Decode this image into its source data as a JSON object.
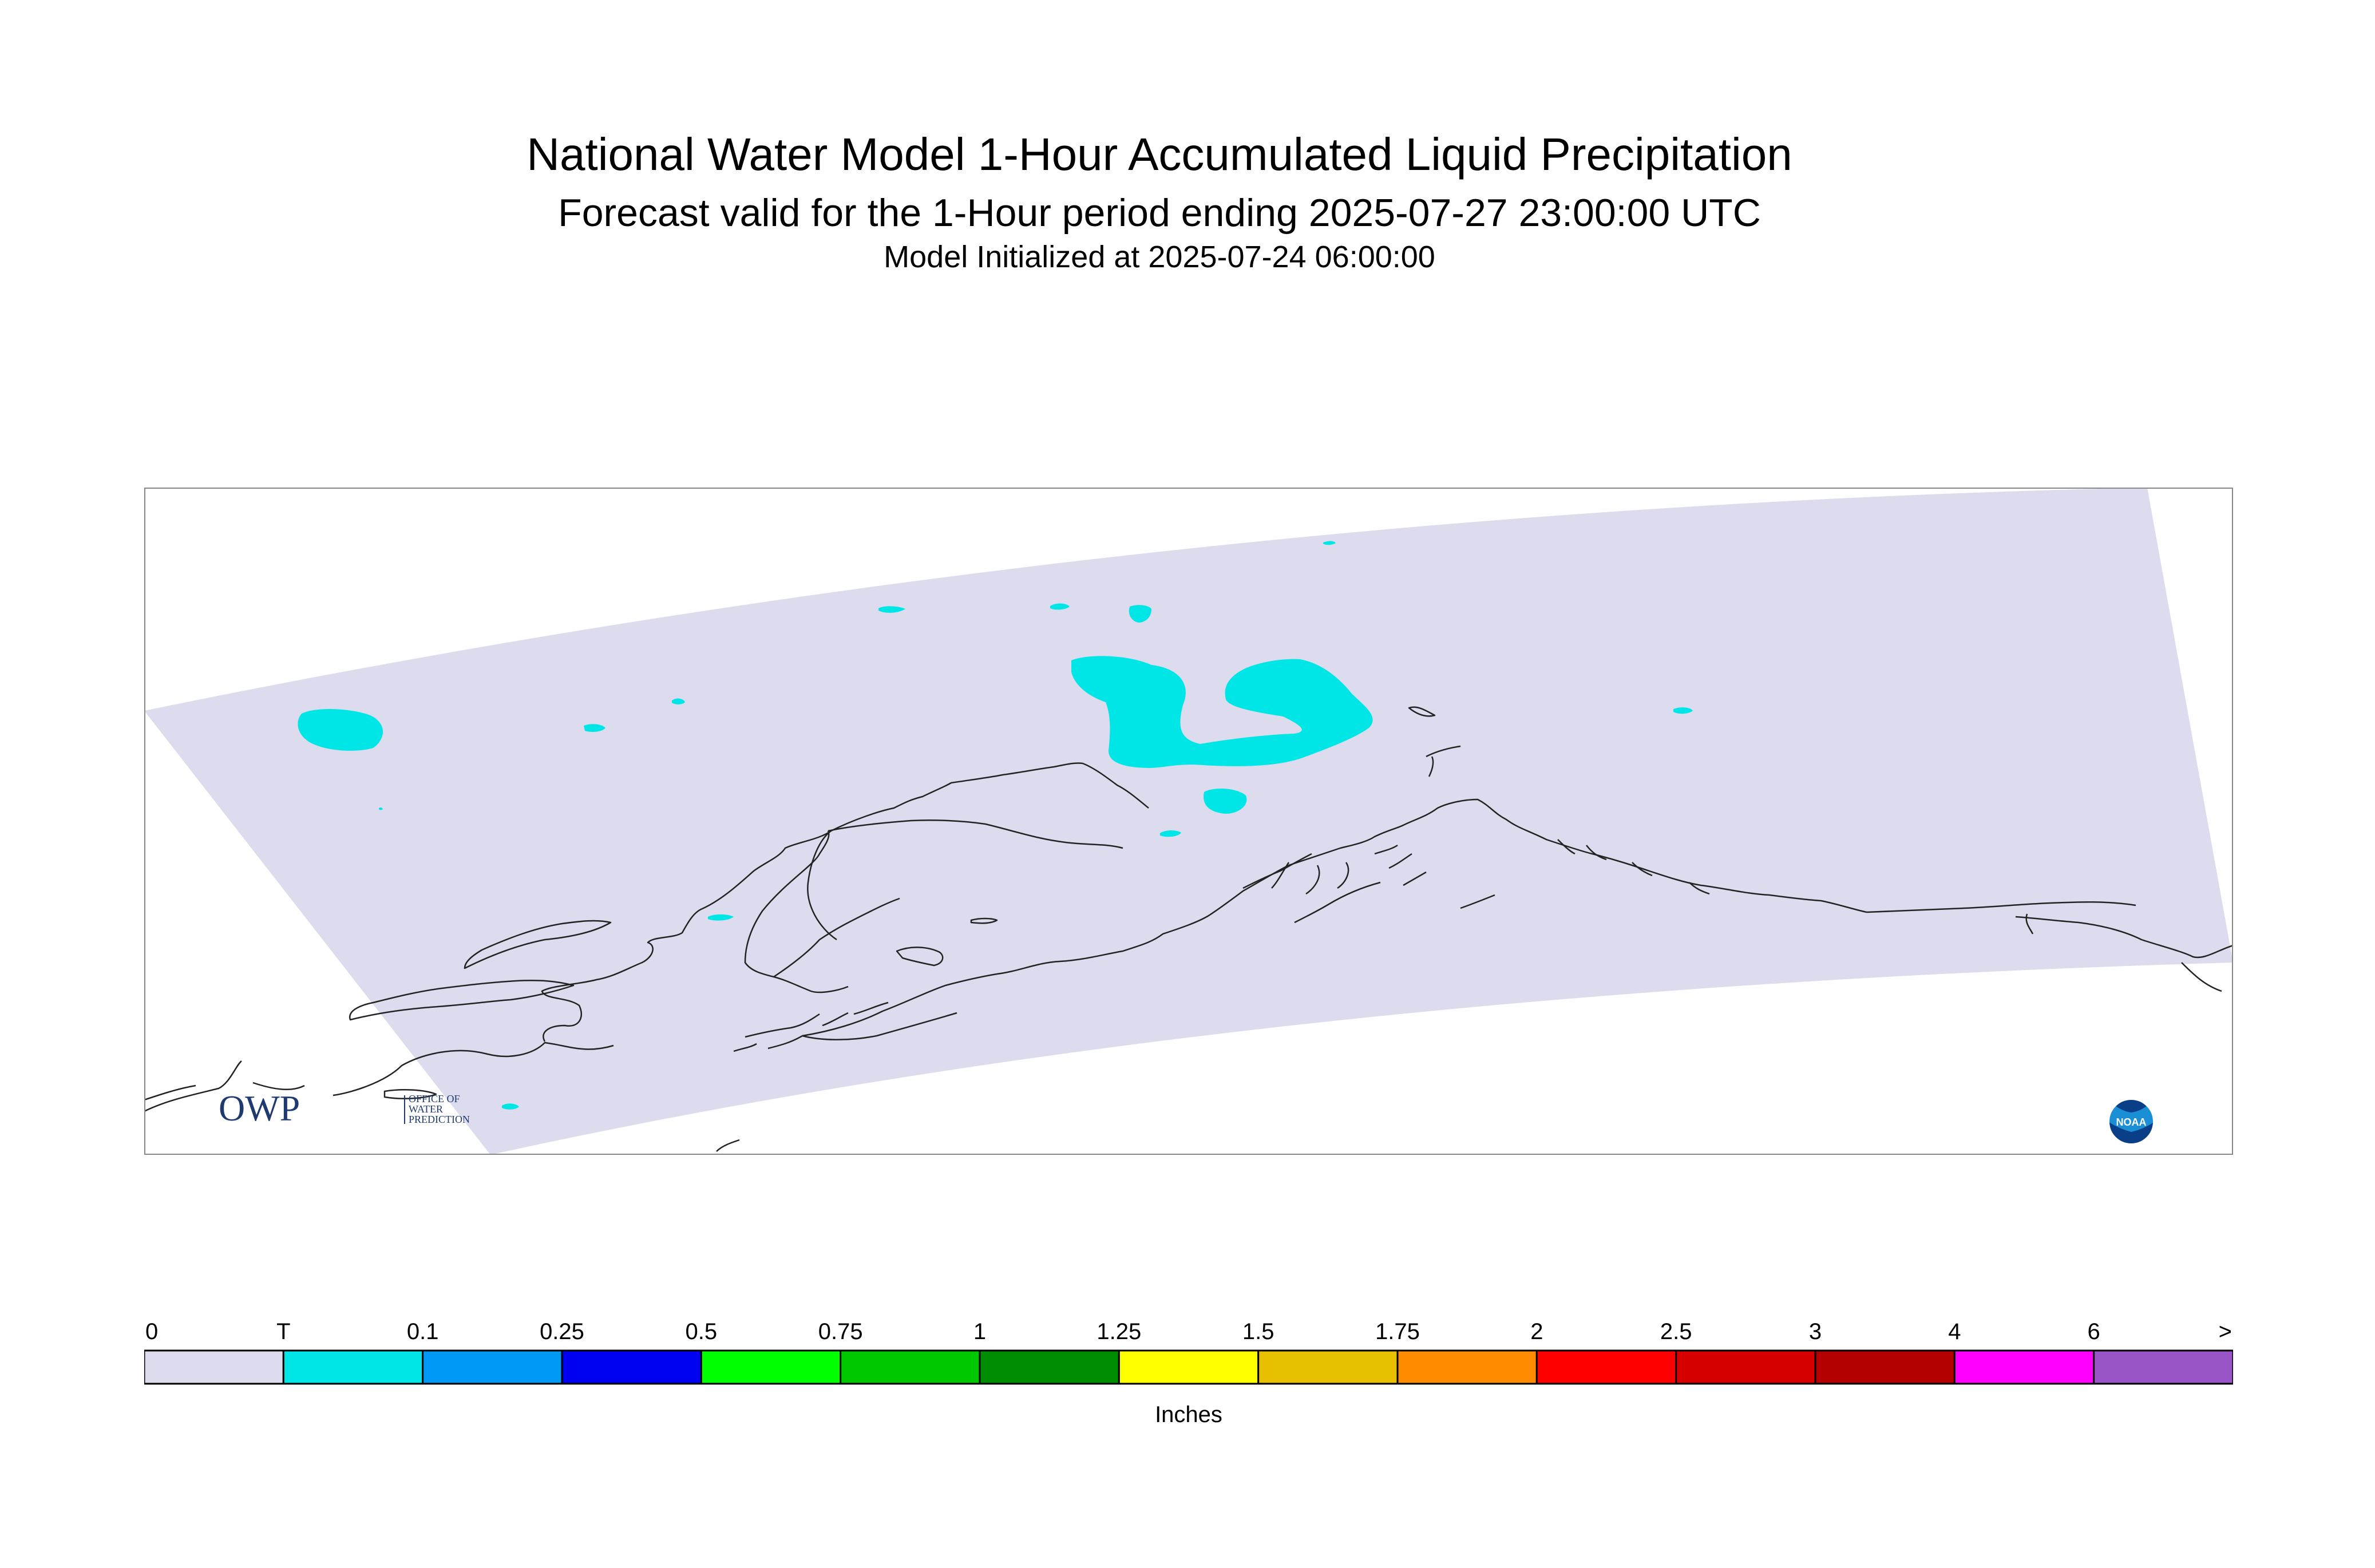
{
  "title": {
    "main": "National Water Model 1-Hour Accumulated Liquid Precipitation",
    "forecast": "Forecast valid for the 1-Hour period ending 2025-07-27 23:00:00 UTC",
    "init": "Model Initialized at 2025-07-24 06:00:00"
  },
  "map": {
    "domain_fill_color": "#dcdcee",
    "precip_color": "#00e6e6",
    "coastline_color": "#222222",
    "owp_logo": {
      "letters": "OWP",
      "line1": "OFFICE OF",
      "line2": "WATER",
      "line3": "PREDICTION",
      "color": "#1e3a6e"
    },
    "noaa_logo": {
      "text": "NOAA",
      "icon": "noaa-logo-icon"
    }
  },
  "legend": {
    "unit_label": "Inches",
    "ticks": [
      "0",
      "T",
      "0.1",
      "0.25",
      "0.5",
      "0.75",
      "1",
      "1.25",
      "1.5",
      "1.75",
      "2",
      "2.5",
      "3",
      "4",
      "6",
      ">"
    ],
    "colors": [
      "#dcdcee",
      "#00e6e6",
      "#0099f5",
      "#0000f0",
      "#00ff00",
      "#00c800",
      "#008c00",
      "#ffff00",
      "#e6bf00",
      "#ff8c00",
      "#ff0000",
      "#d60000",
      "#b40000",
      "#ff00ff",
      "#9955c8"
    ]
  }
}
